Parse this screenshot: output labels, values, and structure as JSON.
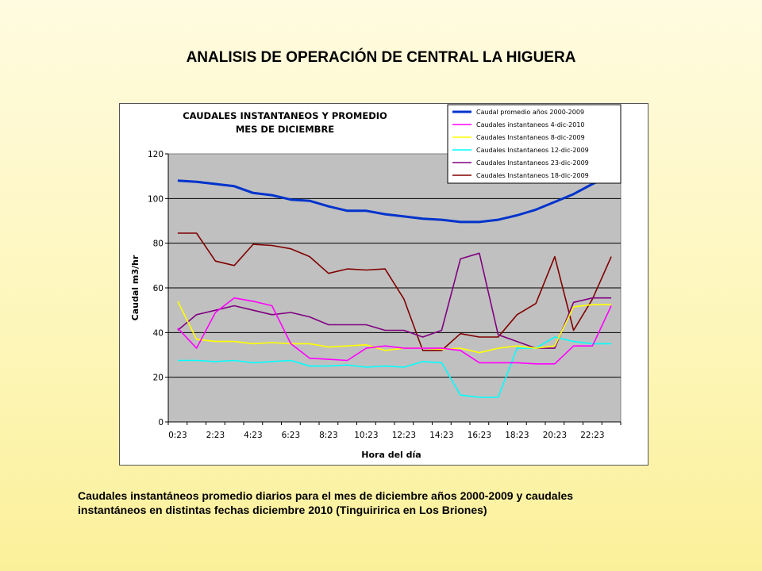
{
  "page": {
    "title": "ANALISIS DE OPERACIÓN DE CENTRAL LA HIGUERA",
    "caption_line1": "Caudales instantáneos promedio diarios para el mes de diciembre años 2000-2009 y caudales",
    "caption_line2": "instantáneos en distintas fechas diciembre 2010 (Tinguiririca en Los Briones)"
  },
  "chart_data": {
    "type": "line",
    "title_line1": "CAUDALES INSTANTANEOS Y PROMEDIO",
    "title_line2": "MES DE DICIEMBRE",
    "xlabel": "Hora del día",
    "ylabel": "Caudal m3/hr",
    "ylim": [
      0,
      120
    ],
    "yticks": [
      "0",
      "20",
      "40",
      "60",
      "80",
      "100",
      "120"
    ],
    "grid": true,
    "legend_position": "top-right",
    "plot_background": "#c0c0c0",
    "x_tick_labels": [
      "0:23",
      "2:23",
      "4:23",
      "6:23",
      "8:23",
      "10:23",
      "12:23",
      "14:23",
      "16:23",
      "18:23",
      "20:23",
      "22:23"
    ],
    "x": [
      "0:23",
      "1:23",
      "2:23",
      "3:23",
      "4:23",
      "5:23",
      "6:23",
      "7:23",
      "8:23",
      "9:23",
      "10:23",
      "11:23",
      "12:23",
      "13:23",
      "14:23",
      "15:23",
      "16:23",
      "17:23",
      "18:23",
      "19:23",
      "20:23",
      "21:23",
      "22:23",
      "23:23"
    ],
    "series": [
      {
        "name": "Caudal promedio años 2000-2009",
        "color": "#0033cc",
        "width": 3,
        "values": [
          108,
          107.5,
          106.5,
          105.5,
          102.5,
          101.5,
          99.5,
          99,
          96.5,
          94.5,
          94.5,
          93,
          92,
          91,
          90.5,
          89.5,
          89.5,
          90.5,
          92.5,
          95,
          98.5,
          102,
          106.5,
          110.5
        ]
      },
      {
        "name": "Caudales instantaneos 4-dic-2010",
        "color": "#ff00ff",
        "width": 1.6,
        "values": [
          42,
          33,
          49,
          55.5,
          54,
          52,
          35,
          28.5,
          28,
          27.5,
          33,
          34,
          33,
          33,
          33,
          32,
          26.5,
          26.5,
          26.5,
          26,
          26,
          34,
          34,
          52
        ]
      },
      {
        "name": "Caudales Instantaneos 8-dic-2009",
        "color": "#ffff00",
        "width": 1.6,
        "values": [
          54,
          37,
          36,
          36,
          35,
          35.5,
          35,
          35,
          33.5,
          34,
          34.5,
          32,
          33,
          33,
          32.5,
          33,
          31,
          33,
          34,
          33,
          34,
          51.5,
          52.5,
          52.5
        ]
      },
      {
        "name": "Caudales Instantaneos 12-dic-2009",
        "color": "#00ffff",
        "width": 1.6,
        "values": [
          27.5,
          27.5,
          27,
          27.5,
          26.5,
          27,
          27.5,
          25,
          25,
          25.5,
          24.5,
          25,
          24.5,
          27,
          26.5,
          12,
          11,
          11,
          33,
          33,
          38,
          36,
          35,
          35
        ]
      },
      {
        "name": "Caudales Instantaneos 23-dic-2009",
        "color": "#800080",
        "width": 1.6,
        "values": [
          41,
          48,
          50,
          52,
          50,
          48,
          49,
          47,
          43.5,
          43.5,
          43.5,
          41,
          41,
          38,
          41,
          73,
          75.5,
          39,
          36,
          33,
          33,
          53.5,
          55.5,
          55.5
        ]
      },
      {
        "name": "Caudales Instantaneos 18-dic-2009",
        "color": "#800000",
        "width": 1.6,
        "values": [
          84.5,
          84.5,
          72,
          70,
          79.5,
          79,
          77.5,
          74,
          66.5,
          68.5,
          68,
          68.5,
          55,
          32,
          32,
          39.5,
          38,
          38,
          48,
          53,
          74,
          41,
          55,
          74
        ]
      }
    ]
  }
}
